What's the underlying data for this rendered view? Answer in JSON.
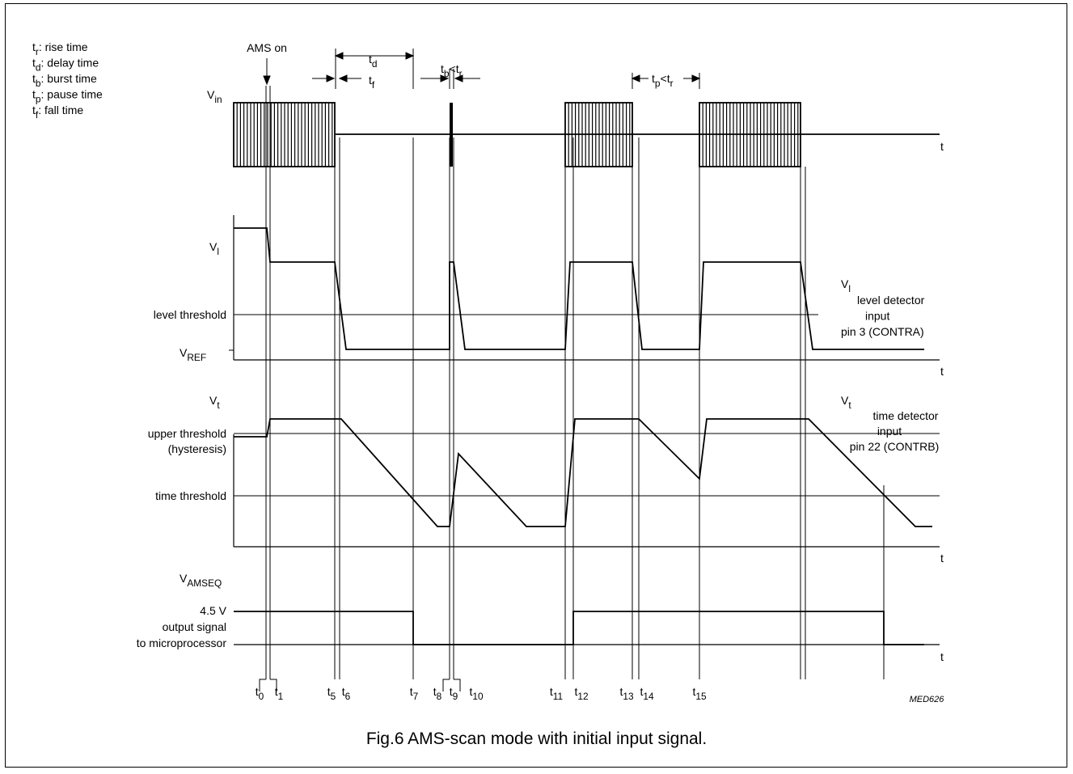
{
  "legend": [
    {
      "sym": "t",
      "sub": "r",
      "text": ": rise time"
    },
    {
      "sym": "t",
      "sub": "d",
      "text": ": delay time"
    },
    {
      "sym": "t",
      "sub": "b",
      "text": ": burst time"
    },
    {
      "sym": "t",
      "sub": "p",
      "text": ": pause time"
    },
    {
      "sym": "t",
      "sub": "f",
      "text": ": fall time"
    }
  ],
  "ams_on": "AMS on",
  "intervals": {
    "td": {
      "sym": "t",
      "sub": "d"
    },
    "tf": {
      "sym": "t",
      "sub": "f"
    },
    "tb_tr": {
      "a": "t",
      "asub": "b",
      "op": "<",
      "b": "t",
      "bsub": "r"
    },
    "tp_tr": {
      "a": "t",
      "asub": "p",
      "op": "<",
      "b": "t",
      "bsub": "r"
    }
  },
  "signals": {
    "vin": {
      "sym": "V",
      "sub": "in"
    },
    "vl": {
      "sym": "V",
      "sub": "l"
    },
    "vt": {
      "sym": "V",
      "sub": "t"
    },
    "vamseq": {
      "sym": "V",
      "sub": "AMSEQ"
    }
  },
  "levels": {
    "level_threshold": "level threshold",
    "vref": {
      "sym": "V",
      "sub": "REF"
    },
    "upper_threshold_1": "upper threshold",
    "upper_threshold_2": "(hysteresis)",
    "time_threshold": "time threshold",
    "output_1": "4.5 V",
    "output_2": "output signal",
    "output_3": "to microprocessor"
  },
  "axis_label": "t",
  "notes": {
    "vl": {
      "sym": "V",
      "sub": "l",
      "lines": [
        ": voltage at",
        "level detector",
        "input",
        "pin 3 (CONTRA)"
      ]
    },
    "vt": {
      "sym": "V",
      "sub": "t",
      "lines": [
        ": voltage at",
        "time detector",
        "input",
        "pin 22 (CONTRB)"
      ]
    }
  },
  "time_marks": [
    {
      "sym": "t",
      "sub": "0"
    },
    {
      "sym": "t",
      "sub": "1"
    },
    {
      "sym": "t",
      "sub": "5"
    },
    {
      "sym": "t",
      "sub": "6"
    },
    {
      "sym": "t",
      "sub": "7"
    },
    {
      "sym": "t",
      "sub": "8"
    },
    {
      "sym": "t",
      "sub": "9"
    },
    {
      "sym": "t",
      "sub": "10"
    },
    {
      "sym": "t",
      "sub": "11"
    },
    {
      "sym": "t",
      "sub": "12"
    },
    {
      "sym": "t",
      "sub": "13"
    },
    {
      "sym": "t",
      "sub": "14"
    },
    {
      "sym": "t",
      "sub": "15"
    }
  ],
  "figure_code": "MED626",
  "caption": "Fig.6  AMS-scan mode with initial input signal."
}
